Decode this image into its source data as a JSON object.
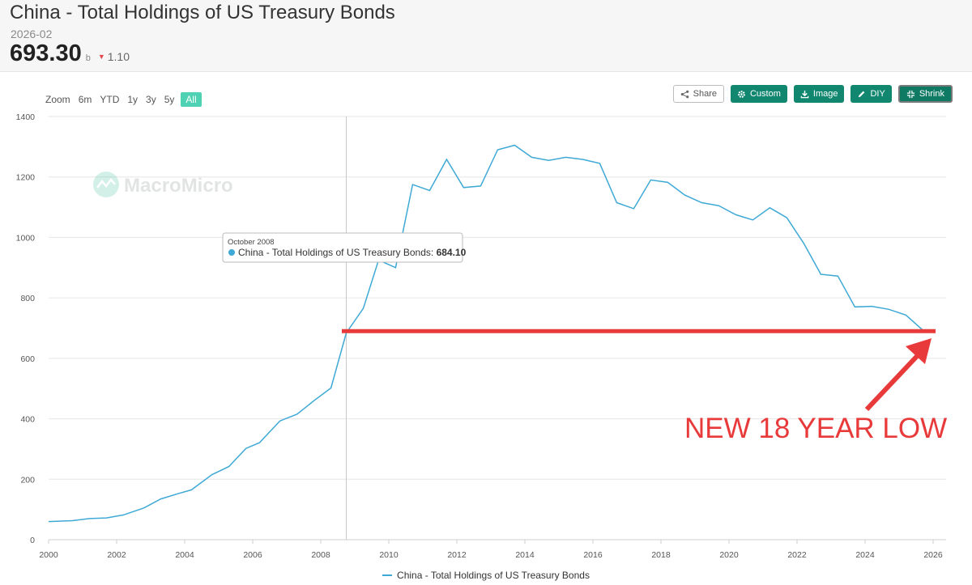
{
  "header": {
    "title": "China - Total Holdings of US Treasury Bonds",
    "period": "2026-02",
    "value": "693.30",
    "unit": "b",
    "change": "1.10"
  },
  "zoom": {
    "label": "Zoom",
    "options": [
      "6m",
      "YTD",
      "1y",
      "3y",
      "5y",
      "All"
    ],
    "active": "All"
  },
  "toolbar": {
    "share": "Share",
    "custom": "Custom",
    "image": "Image",
    "diy": "DIY",
    "shrink": "Shrink"
  },
  "watermark": "MacroMicro",
  "tooltip": {
    "date": "October 2008",
    "series": "China - Total Holdings of US Treasury Bonds:",
    "value": "684.10"
  },
  "annotation": {
    "text": "NEW 18 YEAR LOW",
    "level": 690,
    "color": "#e83a3a"
  },
  "colors": {
    "line": "#3fa9d6",
    "accent": "#11876f",
    "zoom_active": "#4fd1b3"
  },
  "chart_data": {
    "type": "line",
    "xlim": [
      2000,
      2026
    ],
    "ylim": [
      0,
      1400
    ],
    "x_ticks": [
      "2000",
      "2002",
      "2004",
      "2006",
      "2008",
      "2010",
      "2012",
      "2014",
      "2016",
      "2018",
      "2020",
      "2022",
      "2024",
      "2026"
    ],
    "y_ticks": [
      "0",
      "200",
      "400",
      "600",
      "800",
      "1000",
      "1200",
      "1400"
    ],
    "legend": "China - Total Holdings of US Treasury Bonds",
    "grid": true,
    "crosshair_x": 2008.75,
    "series": [
      {
        "name": "China - Total Holdings of US Treasury Bonds",
        "x": [
          2000.0,
          2000.7,
          2001.2,
          2001.7,
          2002.2,
          2002.8,
          2003.3,
          2003.8,
          2004.2,
          2004.8,
          2005.3,
          2005.8,
          2006.2,
          2006.8,
          2007.3,
          2007.8,
          2008.3,
          2008.75,
          2009.25,
          2009.7,
          2010.2,
          2010.7,
          2011.2,
          2011.7,
          2012.2,
          2012.7,
          2013.2,
          2013.7,
          2014.2,
          2014.7,
          2015.2,
          2015.7,
          2016.2,
          2016.7,
          2017.2,
          2017.7,
          2018.2,
          2018.7,
          2019.2,
          2019.7,
          2020.2,
          2020.7,
          2021.2,
          2021.7,
          2022.2,
          2022.7,
          2023.2,
          2023.7,
          2024.2,
          2024.7,
          2025.2,
          2025.7,
          2026.0
        ],
        "values": [
          60,
          63,
          70,
          72,
          82,
          105,
          135,
          152,
          165,
          215,
          242,
          302,
          321,
          393,
          415,
          460,
          502,
          684,
          765,
          925,
          900,
          1175,
          1155,
          1258,
          1165,
          1170,
          1290,
          1305,
          1265,
          1255,
          1265,
          1258,
          1245,
          1115,
          1095,
          1190,
          1182,
          1140,
          1115,
          1105,
          1075,
          1058,
          1098,
          1065,
          980,
          878,
          872,
          770,
          772,
          762,
          743,
          693,
          693
        ]
      }
    ]
  }
}
